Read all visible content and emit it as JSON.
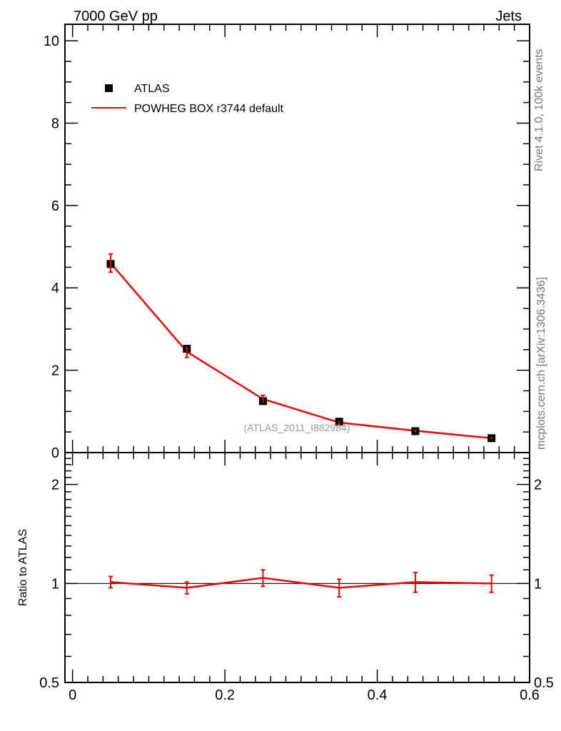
{
  "header": {
    "left_title": "7000 GeV pp",
    "right_title": "Jets"
  },
  "side_text": {
    "rivet": "Rivet 4.1.0,  100k events",
    "mcplots": "mcplots.cern.ch [arXiv:1306.3436]"
  },
  "watermark": "(ATLAS_2011_I882984)",
  "legend": {
    "data_label": "ATLAS",
    "mc_label": "POWHEG BOX r3744 default"
  },
  "ratio_ylabel": "Ratio to ATLAS",
  "colors": {
    "data": "#000000",
    "mc": "#ee0000"
  },
  "chart_data": [
    {
      "type": "scatter",
      "panel": "main",
      "xlim": [
        -0.01,
        0.6
      ],
      "ylim": [
        0,
        10.4
      ],
      "x_ticks": [
        "0",
        "0.2",
        "0.4",
        "0.6"
      ],
      "y_ticks": [
        "0",
        "2",
        "4",
        "6",
        "8",
        "10"
      ],
      "x": [
        0.05,
        0.15,
        0.25,
        0.35,
        0.45,
        0.55
      ],
      "series": [
        {
          "name": "ATLAS",
          "kind": "points",
          "values": [
            4.58,
            2.52,
            1.25,
            0.75,
            0.52,
            0.35
          ],
          "errors": [
            0.12,
            0.08,
            0.05,
            0.03,
            0.02,
            0.02
          ]
        },
        {
          "name": "POWHEG BOX r3744 default",
          "kind": "line",
          "values": [
            4.6,
            2.45,
            1.3,
            0.73,
            0.53,
            0.35
          ],
          "errors": [
            0.22,
            0.14,
            0.09,
            0.05,
            0.04,
            0.03
          ]
        }
      ]
    },
    {
      "type": "line",
      "panel": "ratio",
      "ylabel": "Ratio to ATLAS",
      "xlim": [
        -0.01,
        0.6
      ],
      "ylim": [
        0.5,
        2.5
      ],
      "y_scale": "log",
      "y_ticks": [
        "0.5",
        "1",
        "2"
      ],
      "x": [
        0.05,
        0.15,
        0.25,
        0.35,
        0.45,
        0.55
      ],
      "series": [
        {
          "name": "POWHEG BOX r3744 default",
          "values": [
            1.01,
            0.97,
            1.04,
            0.97,
            1.01,
            1.0
          ],
          "errors": [
            0.04,
            0.04,
            0.06,
            0.06,
            0.07,
            0.06
          ]
        }
      ]
    }
  ]
}
